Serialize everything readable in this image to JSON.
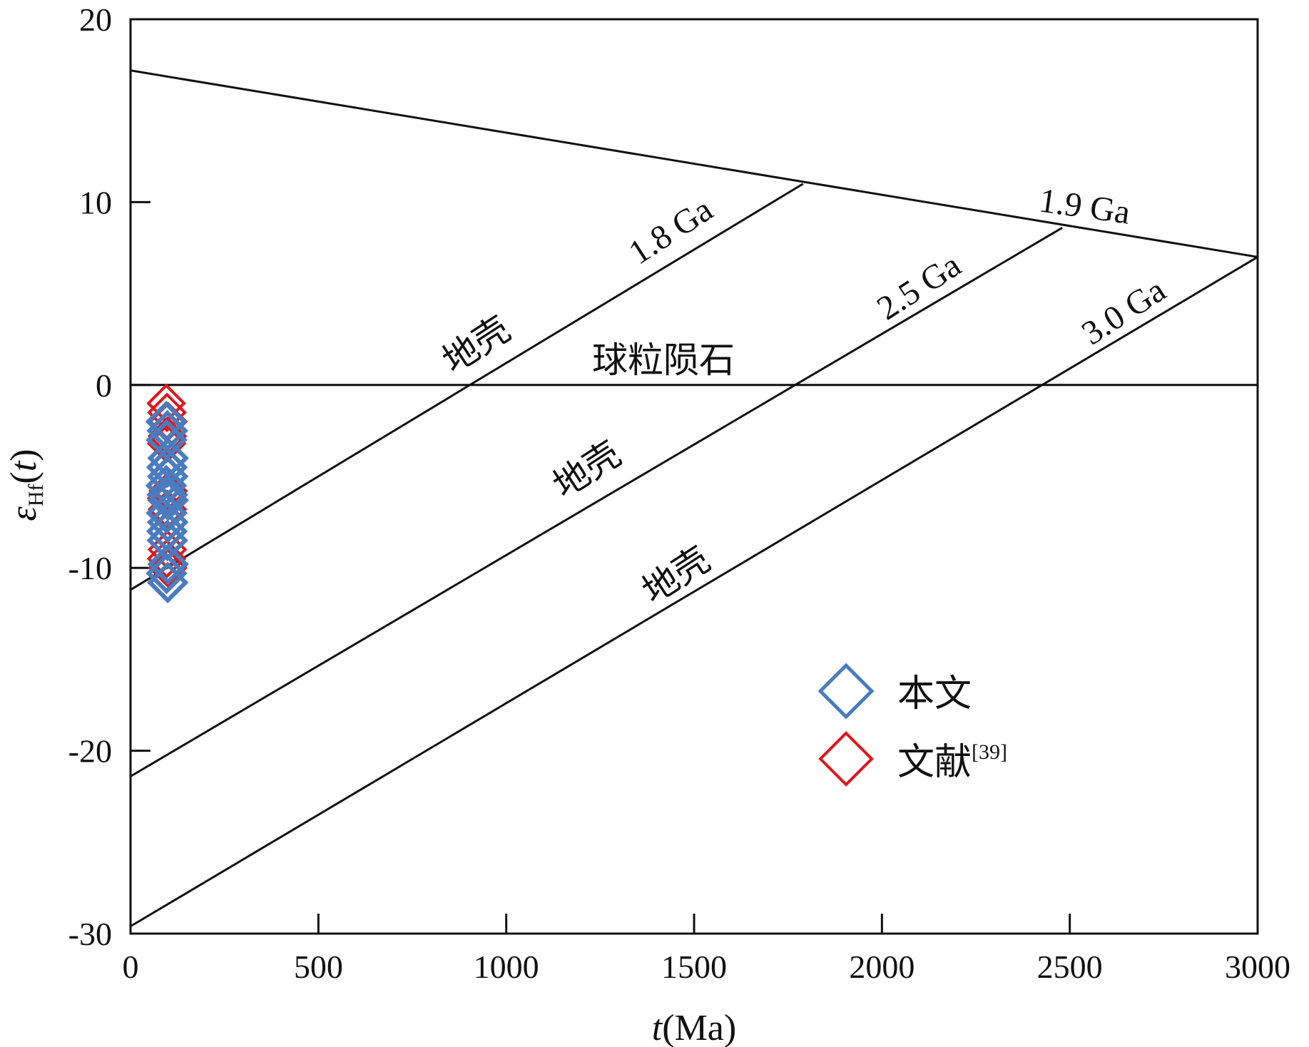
{
  "chart_data": {
    "type": "scatter",
    "xlabel": "t(Ma)",
    "xlabel_parts": {
      "var": "t",
      "unit": "(Ma)"
    },
    "ylabel_parts": {
      "base": "ε",
      "sub": "Hf",
      "arg": "(t)"
    },
    "xlim": [
      0,
      3000
    ],
    "ylim": [
      -30,
      20
    ],
    "xticks": [
      0,
      500,
      1000,
      1500,
      2000,
      2500,
      3000
    ],
    "yticks": [
      20,
      10,
      0,
      -10,
      -20,
      -30
    ],
    "xtick_labels": [
      "0",
      "500",
      "1000",
      "1500",
      "2000",
      "2500",
      "3000"
    ],
    "ytick_labels": [
      "20",
      "10",
      "0",
      "-10",
      "-20",
      "-30"
    ],
    "grid": false,
    "reference_lines": [
      {
        "id": "depleted-mantle",
        "x": [
          0,
          3000
        ],
        "y": [
          17.2,
          7.0
        ]
      },
      {
        "id": "chondrite",
        "x": [
          0,
          3000
        ],
        "y": [
          0,
          0
        ]
      },
      {
        "id": "crust-1-8",
        "x": [
          0,
          1790
        ],
        "y": [
          -11.2,
          11.0
        ]
      },
      {
        "id": "crust-2-5",
        "x": [
          0,
          2480
        ],
        "y": [
          -21.4,
          8.6
        ]
      },
      {
        "id": "crust-3-0",
        "x": [
          0,
          3000
        ],
        "y": [
          -29.6,
          7.0
        ]
      }
    ],
    "annotations": {
      "ga_1_8": "1.8 Ga",
      "ga_1_9": "1.9 Ga",
      "ga_2_5": "2.5 Ga",
      "ga_3_0": "3.0 Ga",
      "chondrite": "球粒陨石",
      "crust": "地壳"
    },
    "legend": {
      "position": "lower-right",
      "entries": [
        {
          "label": "本文",
          "color": "#4a7cc0"
        },
        {
          "label": "文献",
          "ref": "[39]",
          "color": "#e0161c"
        }
      ]
    },
    "series": [
      {
        "key": "literature",
        "color": "#e0161c",
        "x": [
          95,
          97,
          100,
          98,
          96,
          99,
          97,
          100,
          96,
          98,
          99,
          97,
          95,
          100,
          98,
          96,
          99
        ],
        "y": [
          -1.0,
          -1.5,
          -2.0,
          -2.8,
          -3.2,
          -4.5,
          -5.5,
          -5.8,
          -6.2,
          -6.8,
          -7.0,
          -7.5,
          -8.0,
          -8.5,
          -9.0,
          -9.5,
          -10.0
        ]
      },
      {
        "key": "this-study",
        "color": "#4a7cc0",
        "x": [
          95,
          98,
          96,
          100,
          97,
          99,
          95,
          98,
          100,
          96,
          99,
          97,
          98,
          100,
          96,
          99
        ],
        "y": [
          -2.0,
          -2.5,
          -3.0,
          -4.0,
          -4.5,
          -5.0,
          -5.5,
          -6.0,
          -6.3,
          -7.0,
          -7.5,
          -8.0,
          -8.5,
          -9.8,
          -10.3,
          -10.8
        ]
      }
    ]
  }
}
